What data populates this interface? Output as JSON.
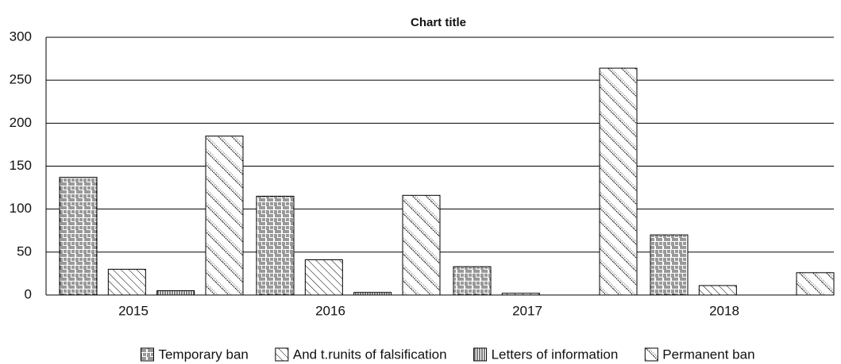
{
  "chart_data": {
    "type": "bar",
    "title": "Chart title",
    "categories": [
      "2015",
      "2016",
      "2017",
      "2018"
    ],
    "series": [
      {
        "name": "Temporary ban",
        "color": "#000000",
        "values": [
          137,
          115,
          33,
          70
        ]
      },
      {
        "name": "And t.runits of falsification",
        "color": "#000000",
        "values": [
          30,
          41,
          2,
          11
        ]
      },
      {
        "name": "Letters of information",
        "color": "#000000",
        "values": [
          5,
          3,
          0,
          0
        ]
      },
      {
        "name": "Permanent ban",
        "color": "#000000",
        "values": [
          185,
          116,
          264,
          26
        ]
      }
    ],
    "ylim": [
      0,
      300
    ],
    "yticks": [
      0,
      50,
      100,
      150,
      200,
      250,
      300
    ],
    "grid": true,
    "legend": "bottom"
  }
}
